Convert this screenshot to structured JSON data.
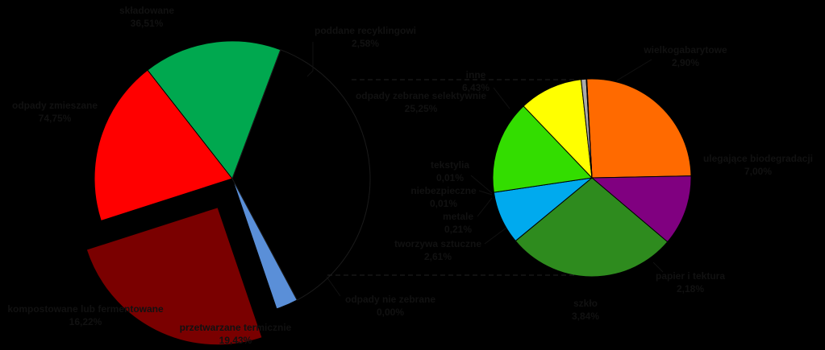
{
  "chart_data": [
    {
      "type": "pie",
      "slices": [
        {
          "label": "składowane",
          "value": 36.51,
          "display": "36,51%",
          "color": "#000000"
        },
        {
          "label": "poddane recyklingowi",
          "value": 2.58,
          "display": "2,58%",
          "color": "#5a8fd8"
        },
        {
          "label": "odpady zebrane selektywnie",
          "value": 25.25,
          "display": "25,25%",
          "color": "#7a0000"
        },
        {
          "label": "odpady nie zebrane",
          "value": 0.0,
          "display": "0,00%",
          "color": "#000000"
        },
        {
          "label": "przetwarzane termicznie",
          "value": 19.43,
          "display": "19,43%",
          "color": "#ff0000"
        },
        {
          "label": "kompostowane lub fermentowane",
          "value": 16.22,
          "display": "16,22%",
          "color": "#00a84f"
        }
      ],
      "group_label": "odpady zmieszane",
      "group_value": "74,75%"
    },
    {
      "type": "pie",
      "slices": [
        {
          "label": "inne",
          "value": 6.43,
          "display": "6,43%",
          "color": "#ff6a00"
        },
        {
          "label": "wielkogabarytowe",
          "value": 2.9,
          "display": "2,90%",
          "color": "#800080"
        },
        {
          "label": "ulegające biodegradacji",
          "value": 7.0,
          "display": "7,00%",
          "color": "#2e8b1e"
        },
        {
          "label": "papier i tektura",
          "value": 2.18,
          "display": "2,18%",
          "color": "#00aaee"
        },
        {
          "label": "szkło",
          "value": 3.84,
          "display": "3,84%",
          "color": "#33dd00"
        },
        {
          "label": "tworzywa sztuczne",
          "value": 2.61,
          "display": "2,61%",
          "color": "#ffff00"
        },
        {
          "label": "metale",
          "value": 0.21,
          "display": "0,21%",
          "color": "#aaaaaa"
        },
        {
          "label": "niebezpieczne",
          "value": 0.01,
          "display": "0,01%",
          "color": "#c0c0c0"
        },
        {
          "label": "tekstylia",
          "value": 0.01,
          "display": "0,01%",
          "color": "#d8d8d8"
        }
      ]
    }
  ]
}
